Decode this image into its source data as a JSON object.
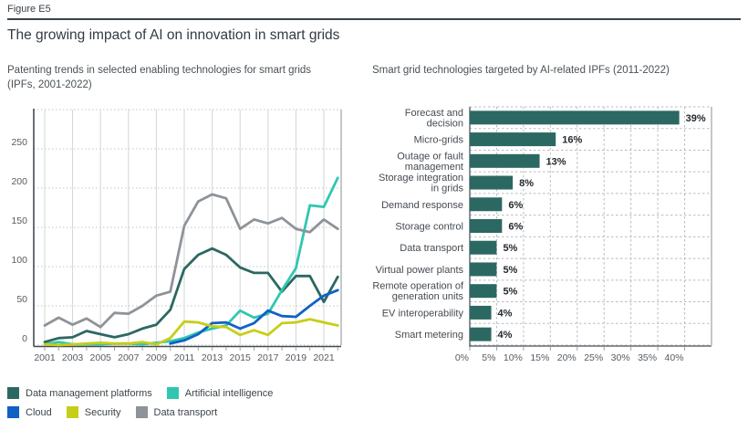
{
  "figure": {
    "label": "Figure E5",
    "title": "The growing impact of AI on innovation in smart grids"
  },
  "left_panel": {
    "subtitle": "Patenting trends in selected enabling technologies for smart grids\n(IPFs, 2001-2022)"
  },
  "right_panel": {
    "subtitle": "Smart grid technologies targeted by AI-related IPFs (2011-2022)"
  },
  "legend": {
    "rows": [
      [
        {
          "label": "Data management platforms",
          "color": "#2c6862"
        },
        {
          "label": "Artificial intelligence",
          "color": "#2fc7b2"
        }
      ],
      [
        {
          "label": "Cloud",
          "color": "#1161c5"
        },
        {
          "label": "Security",
          "color": "#c6ce17"
        },
        {
          "label": "Data transport",
          "color": "#8e9399"
        }
      ]
    ]
  },
  "colors": {
    "bar_fill": "#2c6862",
    "axis_dark": "#454c52",
    "axis_mid": "#666c72",
    "grid_solid": "#d2d5d6",
    "grid_border": "#9da2a6",
    "grid_dotted": "#c3c6c8",
    "grid_dashed": "#b7bbbe",
    "tick_text": "#565c62",
    "category_text": "#454b51",
    "value_text": "#24292e"
  },
  "chart_data": [
    {
      "type": "line",
      "title": "Patenting trends in selected enabling technologies for smart grids (IPFs, 2001-2022)",
      "x": [
        2001,
        2002,
        2003,
        2004,
        2005,
        2006,
        2007,
        2008,
        2009,
        2010,
        2011,
        2012,
        2013,
        2014,
        2015,
        2016,
        2017,
        2018,
        2019,
        2020,
        2021,
        2022
      ],
      "xtick_labels": [
        2001,
        2003,
        2005,
        2007,
        2009,
        2011,
        2013,
        2015,
        2017,
        2019,
        2021
      ],
      "ylim": [
        0,
        300
      ],
      "ytick_step": 50,
      "yticks_labeled": [
        0,
        50,
        100,
        150,
        200,
        250
      ],
      "grid": "vertical-solid-horizontal-dotted",
      "legend_position": "bottom",
      "series": [
        {
          "name": "Data management platforms",
          "color": "#2c6862",
          "values": [
            4,
            9,
            10,
            18,
            14,
            10,
            14,
            21,
            26,
            45,
            97,
            115,
            123,
            115,
            99,
            92,
            92,
            68,
            88,
            88,
            55,
            87
          ]
        },
        {
          "name": "Artificial intelligence",
          "color": "#2fc7b2",
          "values": [
            1,
            4,
            1,
            1,
            1,
            2,
            2,
            1,
            3,
            5,
            9,
            16,
            21,
            25,
            44,
            35,
            40,
            70,
            98,
            178,
            176,
            213
          ]
        },
        {
          "name": "Cloud",
          "color": "#1161c5",
          "values": [
            null,
            null,
            null,
            null,
            null,
            null,
            null,
            null,
            null,
            2,
            6,
            14,
            28,
            29,
            21,
            28,
            44,
            37,
            36,
            50,
            63,
            70
          ]
        },
        {
          "name": "Security",
          "color": "#c6ce17",
          "values": [
            1,
            0,
            1,
            2,
            3,
            2,
            2,
            4,
            1,
            9,
            30,
            29,
            24,
            23,
            13,
            19,
            13,
            28,
            29,
            33,
            29,
            25
          ]
        },
        {
          "name": "Data transport",
          "color": "#8e9399",
          "values": [
            25,
            35,
            26,
            34,
            23,
            41,
            40,
            50,
            63,
            68,
            152,
            183,
            192,
            187,
            148,
            160,
            155,
            162,
            148,
            144,
            160,
            148
          ]
        }
      ]
    },
    {
      "type": "bar",
      "orientation": "horizontal",
      "title": "Smart grid technologies targeted by AI-related IPFs (2011-2022)",
      "categories": [
        "Forecast and decision",
        "Micro-grids",
        "Outage or fault management",
        "Storage integration in grids",
        "Demand response",
        "Storage control",
        "Data transport",
        "Virtual power plants",
        "Remote operation of generation units",
        "EV interoperability",
        "Smart metering"
      ],
      "category_lines": [
        [
          "Forecast and",
          "decision"
        ],
        [
          "Micro-grids"
        ],
        [
          "Outage or fault",
          "management"
        ],
        [
          "Storage integration",
          "in grids"
        ],
        [
          "Demand response"
        ],
        [
          "Storage control"
        ],
        [
          "Data transport"
        ],
        [
          "Virtual power plants"
        ],
        [
          "Remote operation of",
          "generation units"
        ],
        [
          "EV interoperability"
        ],
        [
          "Smart metering"
        ]
      ],
      "values": [
        39,
        16,
        13,
        8,
        6,
        6,
        5,
        5,
        5,
        4,
        4
      ],
      "value_labels": [
        "39%",
        "16%",
        "13%",
        "8%",
        "6%",
        "6%",
        "5%",
        "5%",
        "5%",
        "4%",
        "4%"
      ],
      "xlim": [
        0,
        45
      ],
      "xticks": [
        0,
        5,
        10,
        15,
        20,
        25,
        30,
        35,
        40
      ],
      "xtick_labels": [
        "0%",
        "5%",
        "10%",
        "15%",
        "20%",
        "25%",
        "30%",
        "35%",
        "40%"
      ],
      "bar_color": "#2c6862",
      "grid": "dashed"
    }
  ]
}
